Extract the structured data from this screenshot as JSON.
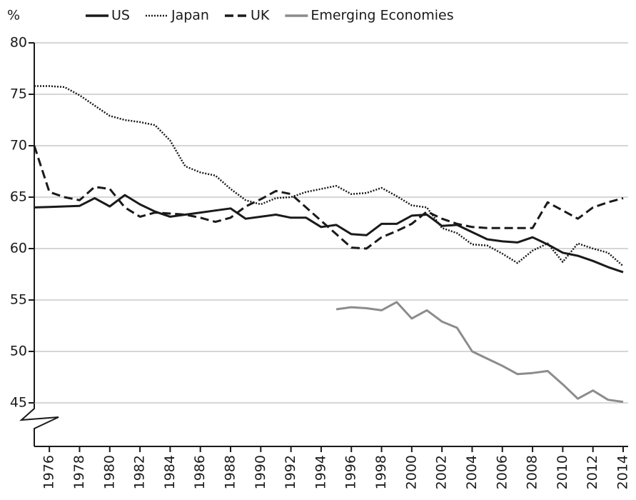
{
  "chart_data": {
    "type": "line",
    "y_label": "%",
    "x": [
      1975,
      1976,
      1977,
      1978,
      1979,
      1980,
      1981,
      1982,
      1983,
      1984,
      1985,
      1986,
      1987,
      1988,
      1989,
      1990,
      1991,
      1992,
      1993,
      1994,
      1995,
      1996,
      1997,
      1998,
      1999,
      2000,
      2001,
      2002,
      2003,
      2004,
      2005,
      2006,
      2007,
      2008,
      2009,
      2010,
      2011,
      2012,
      2013,
      2014
    ],
    "series": [
      {
        "name": "US",
        "color": "#1a1a1a",
        "style": "solid",
        "values": [
          64.0,
          64.05,
          64.1,
          64.15,
          64.9,
          64.1,
          65.2,
          64.3,
          63.6,
          63.1,
          63.3,
          63.5,
          63.7,
          63.9,
          62.9,
          63.1,
          63.3,
          63.0,
          63.0,
          62.1,
          62.3,
          61.4,
          61.3,
          62.4,
          62.4,
          63.2,
          63.3,
          62.2,
          62.3,
          61.6,
          60.9,
          60.7,
          60.6,
          61.1,
          60.4,
          59.6,
          59.3,
          58.8,
          58.2,
          57.7
        ]
      },
      {
        "name": "Japan",
        "color": "#1a1a1a",
        "style": "dotted",
        "values": [
          75.8,
          75.8,
          75.7,
          74.9,
          73.9,
          72.9,
          72.5,
          72.3,
          72.0,
          70.5,
          68.0,
          67.4,
          67.1,
          65.8,
          64.7,
          64.3,
          64.9,
          65.0,
          65.5,
          65.8,
          66.1,
          65.3,
          65.4,
          65.9,
          65.1,
          64.2,
          64.0,
          62.0,
          61.5,
          60.4,
          60.3,
          59.5,
          58.6,
          59.8,
          60.5,
          58.7,
          60.5,
          60.0,
          59.6,
          58.3
        ]
      },
      {
        "name": "UK",
        "color": "#1a1a1a",
        "style": "dashed",
        "values": [
          70.0,
          65.5,
          65.0,
          64.7,
          66.0,
          65.8,
          64.0,
          63.1,
          63.5,
          63.4,
          63.3,
          63.0,
          62.6,
          63.0,
          64.1,
          64.8,
          65.6,
          65.3,
          64.0,
          62.7,
          61.4,
          60.1,
          60.0,
          61.1,
          61.7,
          62.4,
          63.6,
          62.9,
          62.4,
          62.1,
          62.0,
          62.0,
          62.0,
          62.0,
          64.5,
          63.7,
          62.9,
          64.0,
          64.5,
          64.9
        ]
      },
      {
        "name": "Emerging Economies",
        "color": "#8c8c8c",
        "style": "solid",
        "values": [
          null,
          null,
          null,
          null,
          null,
          null,
          null,
          null,
          null,
          null,
          null,
          null,
          null,
          null,
          null,
          null,
          null,
          null,
          null,
          null,
          54.1,
          54.3,
          54.2,
          54.0,
          54.8,
          53.2,
          54.0,
          52.9,
          52.3,
          50.0,
          49.3,
          48.6,
          47.8,
          47.9,
          48.1,
          46.8,
          45.4,
          46.2,
          45.3,
          45.1
        ]
      }
    ],
    "xlim": [
      1975,
      2014
    ],
    "xticks": [
      1976,
      1978,
      1980,
      1982,
      1984,
      1986,
      1988,
      1990,
      1992,
      1994,
      1996,
      1998,
      2000,
      2002,
      2004,
      2006,
      2008,
      2010,
      2012,
      2014
    ],
    "ylim": [
      45,
      80
    ],
    "yticks": [
      45,
      50,
      55,
      60,
      65,
      70,
      75,
      80
    ],
    "grid": true
  }
}
